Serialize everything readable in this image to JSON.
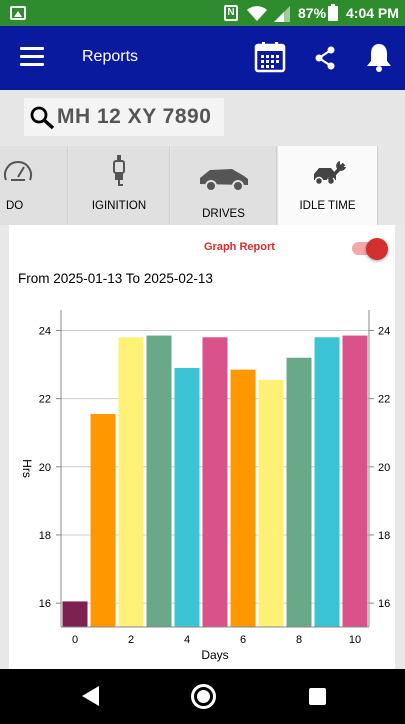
{
  "status_bar": {
    "battery": "87%",
    "time": "4:04 PM",
    "nfc_label": "N",
    "icons": [
      "gallery-icon",
      "nfc-icon",
      "wifi-icon",
      "signal-icon",
      "battery-icon"
    ]
  },
  "app_bar": {
    "title": "Reports",
    "icons": [
      "menu-icon",
      "calendar-icon",
      "share-icon",
      "bell-icon"
    ],
    "color": "#0a1a9e"
  },
  "search": {
    "value": "MH 12 XY 7890"
  },
  "tabs": [
    {
      "label": "ODO",
      "visible_label": "DO",
      "icon": "speedometer-icon",
      "active": false
    },
    {
      "label": "IGINITION",
      "icon": "spark-plug-icon",
      "active": false
    },
    {
      "label": "DRIVES",
      "icon": "car-icon",
      "active": false
    },
    {
      "label": "IDLE TIME",
      "icon": "car-wrench-icon",
      "active": true
    }
  ],
  "report": {
    "graph_title": "Graph Report",
    "graph_toggle_on": true,
    "date_range": "From 2025-01-13 To 2025-02-13"
  },
  "chart_data": {
    "type": "bar",
    "x": [
      0,
      1,
      2,
      3,
      4,
      5,
      6,
      7,
      8,
      9,
      10
    ],
    "values": [
      16.05,
      21.55,
      23.8,
      23.85,
      22.9,
      23.8,
      22.85,
      22.55,
      23.2,
      23.8,
      23.85
    ],
    "colors": [
      "#7b2250",
      "#ff9800",
      "#fff176",
      "#6aa88a",
      "#3bc4d4",
      "#d9528a",
      "#ff9800",
      "#fff176",
      "#6aa88a",
      "#3bc4d4",
      "#d9528a"
    ],
    "x_ticks": [
      0,
      2,
      4,
      6,
      8,
      10
    ],
    "y_ticks": [
      16,
      18,
      20,
      22,
      24
    ],
    "ylim": [
      15.3,
      24.6
    ],
    "xlabel": "Days",
    "ylabel": "Hrs",
    "right_axis": true,
    "grid": "horizontal",
    "legend": "none"
  },
  "nav_bar": {
    "icons": [
      "back-icon",
      "home-icon",
      "recents-icon"
    ]
  }
}
